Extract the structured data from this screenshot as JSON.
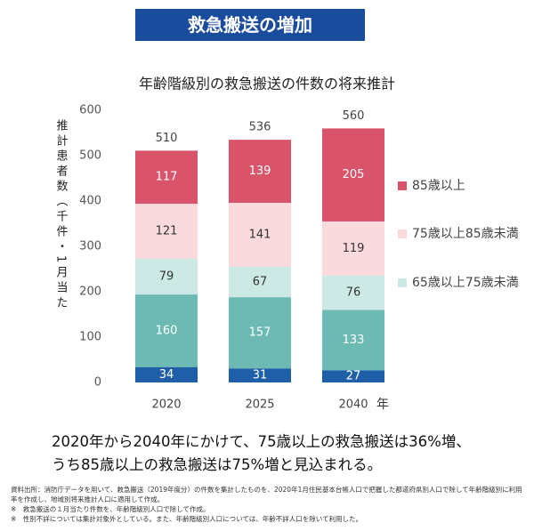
{
  "header": {
    "title": "救急搬送の増加"
  },
  "chart_data": {
    "type": "stacked_bar",
    "title": "年齢階級別の救急搬送の件数の将来推計",
    "y_label": "推計患者数（千件・1月当た",
    "x_label": "年",
    "categories": [
      "2020",
      "2025",
      "2040"
    ],
    "series": [
      {
        "name": null,
        "color": "#1f5fa8",
        "label_color": "#ffffff",
        "values": [
          34,
          31,
          27
        ]
      },
      {
        "name": null,
        "color": "#6cbab3",
        "label_color": "#ffffff",
        "values": [
          160,
          157,
          133
        ]
      },
      {
        "name": "65歳以上75歳未満",
        "color": "#cde9e5",
        "label_color": "#333333",
        "values": [
          79,
          67,
          76
        ]
      },
      {
        "name": "75歳以上85歳未満",
        "color": "#fbdadd",
        "label_color": "#333333",
        "values": [
          121,
          141,
          119
        ]
      },
      {
        "name": "85歳以上",
        "color": "#d9536b",
        "label_color": "#ffffff",
        "values": [
          117,
          139,
          205
        ]
      }
    ],
    "totals": [
      510,
      536,
      560
    ],
    "ylim": [
      0,
      600
    ],
    "yticks": [
      0,
      100,
      200,
      300,
      400,
      500,
      600
    ]
  },
  "summary": [
    "2020年から2040年にかけて、75歳以上の救急搬送は36%増、",
    "うち85歳以上の救急搬送は75%増と見込まれる。"
  ],
  "notes": [
    "資料出所：消防庁データを用いて、救急搬送（2019年度分）の件数を集計したものを、2020年1月住民基本台帳人口で把握した都道府県別人口で除して年齢階級別に利用率を作成し、地域別将来推計人口に適用して作成。",
    "※　救急搬送の１月当たり件数を、年齢階級別人口で除して作成。",
    "※　性別不詳については集計対象外としている。また、年齢階級別人口については、年齢不詳人口を除いて利用した。"
  ]
}
